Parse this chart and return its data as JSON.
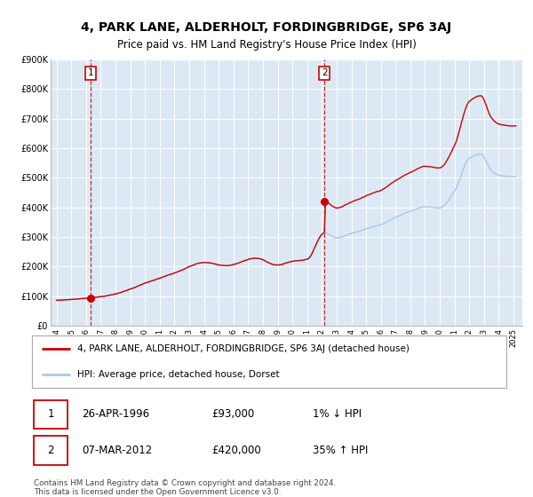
{
  "title": "4, PARK LANE, ALDERHOLT, FORDINGBRIDGE, SP6 3AJ",
  "subtitle": "Price paid vs. HM Land Registry's House Price Index (HPI)",
  "title_fontsize": 10,
  "subtitle_fontsize": 8.5,
  "bg_color": "#dce9f5",
  "plot_bg_color": "#dce9f5",
  "grid_color": "#ffffff",
  "hpi_color": "#aac8e8",
  "price_color": "#cc0000",
  "ylim": [
    0,
    900000
  ],
  "yticks": [
    0,
    100000,
    200000,
    300000,
    400000,
    500000,
    600000,
    700000,
    800000,
    900000
  ],
  "ytick_labels": [
    "£0",
    "£100K",
    "£200K",
    "£300K",
    "£400K",
    "£500K",
    "£600K",
    "£700K",
    "£800K",
    "£900K"
  ],
  "sale1_year": 1996.3,
  "sale1_price": 93000,
  "sale2_year": 2012.17,
  "sale2_price": 420000,
  "legend_label1": "4, PARK LANE, ALDERHOLT, FORDINGBRIDGE, SP6 3AJ (detached house)",
  "legend_label2": "HPI: Average price, detached house, Dorset",
  "annot1_date": "26-APR-1996",
  "annot1_price": "£93,000",
  "annot1_hpi": "1% ↓ HPI",
  "annot2_date": "07-MAR-2012",
  "annot2_price": "£420,000",
  "annot2_hpi": "35% ↑ HPI",
  "footer": "Contains HM Land Registry data © Crown copyright and database right 2024.\nThis data is licensed under the Open Government Licence v3.0.",
  "xstart": 1994,
  "xend": 2025
}
